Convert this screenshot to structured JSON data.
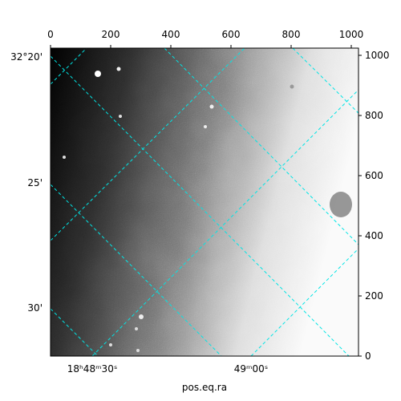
{
  "chart_data": {
    "type": "image",
    "xlabel": "pos.eq.ra",
    "dec_labels": [
      "32°20'",
      "25'",
      "30'"
    ],
    "ra_labels": [
      "18ʰ48ᵐ30ˢ",
      "49ᵐ00ˢ"
    ],
    "xlim": [
      0,
      1024
    ],
    "ylim": [
      0,
      1024
    ],
    "xticks": [
      0,
      200,
      400,
      600,
      800,
      1000
    ],
    "yticks": [
      0,
      200,
      400,
      600,
      800,
      1000
    ]
  }
}
